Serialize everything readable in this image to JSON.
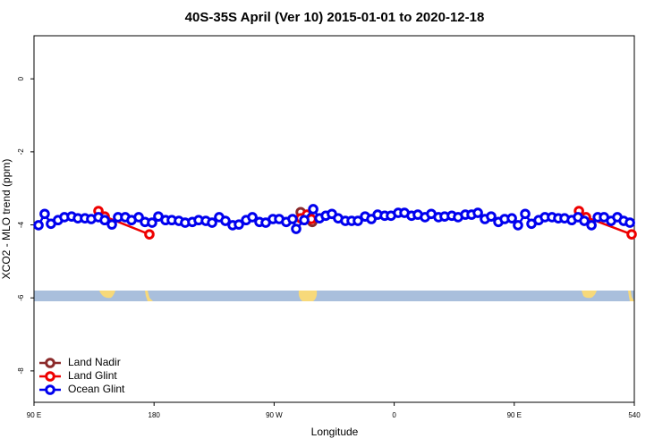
{
  "chart_data": {
    "type": "line",
    "title": "40S-35S April (Ver 10)   2015-01-01 to 2020-12-18",
    "xlabel": "Longitude",
    "ylabel": "XCO2 - MLO trend (ppm)",
    "xlim": [
      90,
      540
    ],
    "ylim": [
      -8.86,
      1.18
    ],
    "xticks": [
      {
        "value": 90,
        "label": "90 E"
      },
      180,
      {
        "value": 270,
        "label": "90 W"
      },
      {
        "value": 360,
        "label": "0"
      },
      {
        "value": 450,
        "label": "90 E"
      },
      540
    ],
    "yticks": [
      0,
      -2,
      -4,
      -6,
      -8
    ],
    "legend": "bottom-left",
    "series": [
      {
        "name": "Land Nadir",
        "color": "#8b2a2a",
        "x": [
          289.9,
          298.6
        ],
        "values": [
          -3.65,
          -3.92
        ]
      },
      {
        "name": "Land Glint",
        "color": "#ee0000",
        "x": [
          138.3,
          143,
          176.5,
          null,
          289.9,
          294.6,
          297.9,
          null,
          498.5,
          503.8,
          538
        ],
        "values": [
          -3.62,
          -3.77,
          -4.26,
          null,
          -3.82,
          -3.72,
          -3.84,
          null,
          -3.62,
          -3.79,
          -4.26
        ]
      },
      {
        "name": "Ocean Glint",
        "color": "#0000ee",
        "x": [
          93.4,
          98,
          102.7,
          108,
          112.8,
          118.2,
          122.9,
          128.2,
          132.9,
          138.3,
          143,
          148.4,
          153,
          158.4,
          163.1,
          168.5,
          173.2,
          178.5,
          183.2,
          188.6,
          193.3,
          198.6,
          203.3,
          208.7,
          213.4,
          218.8,
          223.5,
          228.8,
          233.5,
          238.9,
          243.6,
          249,
          253.7,
          259,
          263.7,
          269.1,
          273.8,
          279.1,
          283.8,
          286.5,
          292.6,
          299.3,
          304,
          308.7,
          313.3,
          318,
          323.4,
          328.1,
          332.8,
          338.2,
          342.9,
          347.6,
          352.9,
          357.6,
          363,
          367.7,
          373,
          377.7,
          383.1,
          387.8,
          393.2,
          397.8,
          403.2,
          407.9,
          413.3,
          418,
          422.7,
          428,
          432.7,
          438.1,
          442.8,
          448.2,
          452.8,
          458.2,
          462.9,
          468.3,
          473,
          478.3,
          483,
          487.7,
          493.1,
          497.8,
          502.5,
          507.9,
          512.6,
          517.3,
          522.6,
          527.3,
          532,
          536.7
        ],
        "values": [
          -4.01,
          -3.7,
          -3.97,
          -3.87,
          -3.79,
          -3.77,
          -3.82,
          -3.82,
          -3.84,
          -3.79,
          -3.87,
          -3.99,
          -3.79,
          -3.79,
          -3.87,
          -3.79,
          -3.92,
          -3.94,
          -3.77,
          -3.87,
          -3.87,
          -3.89,
          -3.94,
          -3.92,
          -3.87,
          -3.89,
          -3.94,
          -3.79,
          -3.89,
          -4.01,
          -3.99,
          -3.87,
          -3.79,
          -3.92,
          -3.94,
          -3.84,
          -3.84,
          -3.92,
          -3.84,
          -4.11,
          -3.87,
          -3.57,
          -3.82,
          -3.75,
          -3.7,
          -3.82,
          -3.89,
          -3.89,
          -3.89,
          -3.77,
          -3.84,
          -3.72,
          -3.75,
          -3.75,
          -3.67,
          -3.67,
          -3.75,
          -3.72,
          -3.79,
          -3.7,
          -3.79,
          -3.77,
          -3.75,
          -3.79,
          -3.72,
          -3.72,
          -3.67,
          -3.84,
          -3.77,
          -3.92,
          -3.84,
          -3.82,
          -4.01,
          -3.7,
          -3.97,
          -3.87,
          -3.79,
          -3.79,
          -3.82,
          -3.82,
          -3.87,
          -3.79,
          -3.89,
          -4.01,
          -3.79,
          -3.79,
          -3.89,
          -3.79,
          -3.89,
          -3.94
        ]
      }
    ]
  }
}
